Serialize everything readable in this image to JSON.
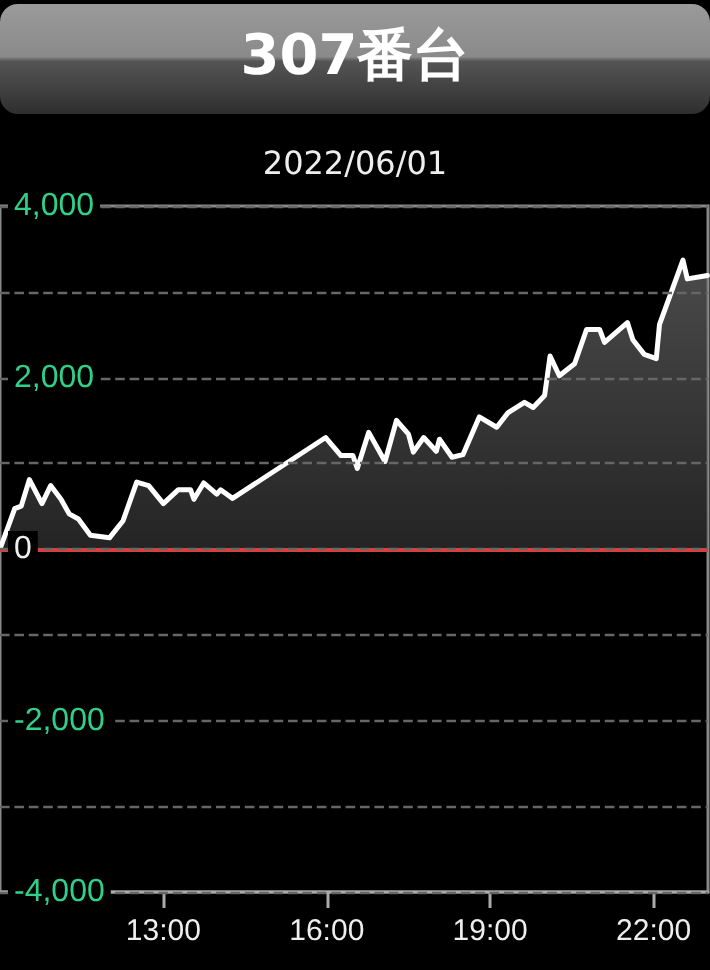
{
  "chart_data": {
    "type": "area",
    "title": "307番台",
    "subtitle": "2022/06/01",
    "x": [
      10,
      10.27,
      10.39,
      10.54,
      10.77,
      10.93,
      11.12,
      11.27,
      11.44,
      11.66,
      12.01,
      12.26,
      12.51,
      12.73,
      13.0,
      13.27,
      13.5,
      13.56,
      13.74,
      13.98,
      14.05,
      14.27,
      15.98,
      16.26,
      16.48,
      16.56,
      16.77,
      17.07,
      17.28,
      17.5,
      17.59,
      17.78,
      18.01,
      18.07,
      18.3,
      18.5,
      18.8,
      19.12,
      19.33,
      19.63,
      19.79,
      20.0,
      20.1,
      20.27,
      20.55,
      20.77,
      21.01,
      21.1,
      21.52,
      21.62,
      21.83,
      22.05,
      22.11,
      22.54,
      22.62,
      22.99
    ],
    "series": [
      {
        "color": "#ffffff",
        "values": [
          0,
          470,
          500,
          810,
          530,
          740,
          580,
          410,
          350,
          160,
          130,
          330,
          780,
          740,
          530,
          690,
          690,
          580,
          770,
          640,
          690,
          590,
          1300,
          1090,
          1090,
          940,
          1360,
          1020,
          1500,
          1340,
          1130,
          1300,
          1140,
          1280,
          1070,
          1100,
          1540,
          1420,
          1590,
          1710,
          1650,
          1790,
          2250,
          2020,
          2160,
          2560,
          2560,
          2410,
          2640,
          2440,
          2270,
          2220,
          2620,
          3370,
          3150,
          3190
        ]
      }
    ],
    "xlim": [
      10,
      23
    ],
    "xticks": [
      {
        "value": 13,
        "label": "13:00"
      },
      {
        "value": 16,
        "label": "16:00"
      },
      {
        "value": 19,
        "label": "19:00"
      },
      {
        "value": 22,
        "label": "22:00"
      }
    ],
    "ylim": [
      -4000,
      4000
    ],
    "yticks": [
      {
        "value": -4000,
        "label": "-4,000"
      },
      {
        "value": -3000,
        "label": null
      },
      {
        "value": -2000,
        "label": "-2,000"
      },
      {
        "value": -1000,
        "label": null
      },
      {
        "value": 0,
        "label": "0"
      },
      {
        "value": 1000,
        "label": null
      },
      {
        "value": 2000,
        "label": "2,000"
      },
      {
        "value": 3000,
        "label": null
      },
      {
        "value": 4000,
        "label": "4,000"
      }
    ],
    "ref_lines": [
      {
        "axis": "y",
        "value": 0,
        "color": "#e03c3c"
      }
    ],
    "grid": "y",
    "marker": "none",
    "line_style": "solid"
  }
}
